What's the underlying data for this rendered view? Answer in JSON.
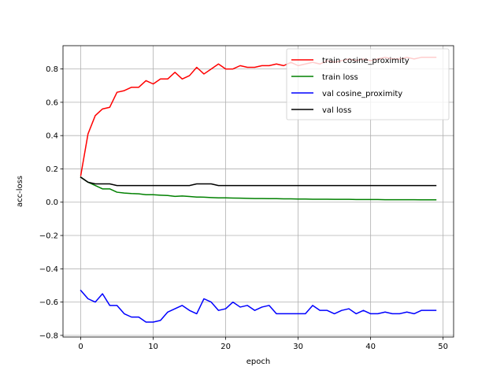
{
  "chart_data": {
    "type": "line",
    "title": "",
    "xlabel": "epoch",
    "ylabel": "acc-loss",
    "xlim": [
      -2.45,
      51.45
    ],
    "ylim": [
      -0.81,
      0.94
    ],
    "xticks": [
      0,
      10,
      20,
      30,
      40,
      50
    ],
    "xtick_labels": [
      "0",
      "10",
      "20",
      "30",
      "40",
      "50"
    ],
    "yticks": [
      -0.8,
      -0.6,
      -0.4,
      -0.2,
      0.0,
      0.2,
      0.4,
      0.6,
      0.8
    ],
    "ytick_labels": [
      "−0.8",
      "−0.6",
      "−0.4",
      "−0.2",
      "0.0",
      "0.2",
      "0.4",
      "0.6",
      "0.8"
    ],
    "grid": true,
    "legend_position": "top-right",
    "x": [
      0,
      1,
      2,
      3,
      4,
      5,
      6,
      7,
      8,
      9,
      10,
      11,
      12,
      13,
      14,
      15,
      16,
      17,
      18,
      19,
      20,
      21,
      22,
      23,
      24,
      25,
      26,
      27,
      28,
      29,
      30,
      31,
      32,
      33,
      34,
      35,
      36,
      37,
      38,
      39,
      40,
      41,
      42,
      43,
      44,
      45,
      46,
      47,
      48,
      49
    ],
    "series": [
      {
        "name": "train cosine_proximity",
        "color": "#ff0000",
        "values": [
          0.16,
          0.41,
          0.52,
          0.56,
          0.57,
          0.66,
          0.67,
          0.69,
          0.69,
          0.73,
          0.71,
          0.74,
          0.74,
          0.78,
          0.74,
          0.76,
          0.81,
          0.77,
          0.8,
          0.83,
          0.8,
          0.8,
          0.82,
          0.81,
          0.81,
          0.82,
          0.82,
          0.83,
          0.82,
          0.84,
          0.82,
          0.83,
          0.84,
          0.83,
          0.85,
          0.84,
          0.85,
          0.86,
          0.85,
          0.86,
          0.85,
          0.86,
          0.87,
          0.86,
          0.86,
          0.87,
          0.86,
          0.87,
          0.87,
          0.87
        ]
      },
      {
        "name": "train loss",
        "color": "#008000",
        "values": [
          0.15,
          0.12,
          0.1,
          0.08,
          0.08,
          0.06,
          0.055,
          0.052,
          0.05,
          0.045,
          0.045,
          0.042,
          0.04,
          0.035,
          0.037,
          0.034,
          0.031,
          0.03,
          0.028,
          0.026,
          0.026,
          0.025,
          0.024,
          0.023,
          0.022,
          0.022,
          0.021,
          0.021,
          0.02,
          0.02,
          0.019,
          0.019,
          0.018,
          0.018,
          0.018,
          0.017,
          0.017,
          0.017,
          0.016,
          0.016,
          0.016,
          0.016,
          0.015,
          0.015,
          0.015,
          0.015,
          0.015,
          0.014,
          0.014,
          0.014
        ]
      },
      {
        "name": "val cosine_proximity",
        "color": "#0000ff",
        "values": [
          -0.53,
          -0.58,
          -0.6,
          -0.55,
          -0.62,
          -0.62,
          -0.67,
          -0.69,
          -0.69,
          -0.72,
          -0.72,
          -0.71,
          -0.66,
          -0.64,
          -0.62,
          -0.65,
          -0.67,
          -0.58,
          -0.6,
          -0.65,
          -0.64,
          -0.6,
          -0.63,
          -0.62,
          -0.65,
          -0.63,
          -0.62,
          -0.67,
          -0.67,
          -0.67,
          -0.67,
          -0.67,
          -0.62,
          -0.65,
          -0.65,
          -0.67,
          -0.65,
          -0.64,
          -0.67,
          -0.65,
          -0.67,
          -0.67,
          -0.66,
          -0.67,
          -0.67,
          -0.66,
          -0.67,
          -0.65,
          -0.65,
          -0.65
        ]
      },
      {
        "name": "val loss",
        "color": "#000000",
        "values": [
          0.15,
          0.12,
          0.11,
          0.11,
          0.11,
          0.1,
          0.1,
          0.1,
          0.1,
          0.1,
          0.1,
          0.1,
          0.1,
          0.1,
          0.1,
          0.1,
          0.11,
          0.11,
          0.11,
          0.1,
          0.1,
          0.1,
          0.1,
          0.1,
          0.1,
          0.1,
          0.1,
          0.1,
          0.1,
          0.1,
          0.1,
          0.1,
          0.1,
          0.1,
          0.1,
          0.1,
          0.1,
          0.1,
          0.1,
          0.1,
          0.1,
          0.1,
          0.1,
          0.1,
          0.1,
          0.1,
          0.1,
          0.1,
          0.1,
          0.1
        ]
      }
    ]
  }
}
